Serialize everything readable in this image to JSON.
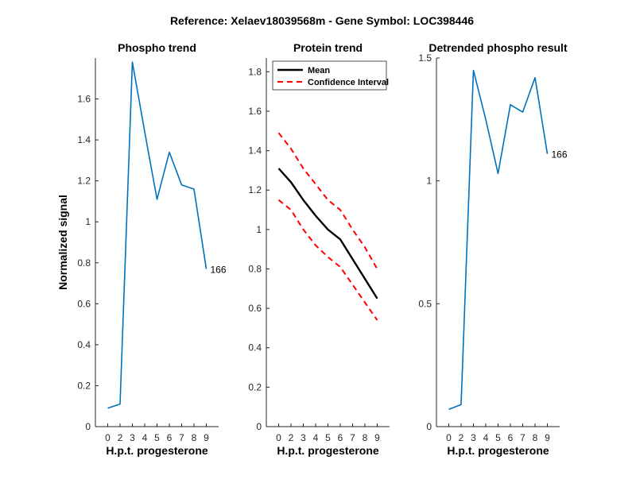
{
  "figure_title": "Reference:  Xelaev18039568m - Gene Symbol:  LOC398446",
  "colors": {
    "series_blue": "#0072BD",
    "mean": "#000000",
    "confidence": "#FF0000",
    "axis": "#262626"
  },
  "chart_data": [
    {
      "type": "line",
      "title": "Phospho trend",
      "xlabel": "H.p.t. progesterone",
      "ylabel": "Normalized signal",
      "x_ticks": [
        "0",
        "2",
        "3",
        "4",
        "5",
        "6",
        "7",
        "8",
        "9"
      ],
      "xlim": [
        0,
        10
      ],
      "ylim": [
        0,
        1.8
      ],
      "y_ticks": [
        "0",
        "0.2",
        "0.4",
        "0.6",
        "0.8",
        "1",
        "1.2",
        "1.4",
        "1.6"
      ],
      "series": [
        {
          "x": [
            1,
            2,
            3,
            4,
            5,
            6,
            7,
            8,
            9
          ],
          "values": [
            0.09,
            0.11,
            1.78,
            1.44,
            1.11,
            1.34,
            1.18,
            1.16,
            0.77
          ]
        }
      ],
      "annotations": [
        {
          "text": "166",
          "x": 9,
          "y": 0.77
        }
      ]
    },
    {
      "type": "line",
      "title": "Protein trend",
      "xlabel": "H.p.t. progesterone",
      "ylabel": "",
      "x_ticks": [
        "0",
        "2",
        "3",
        "4",
        "5",
        "6",
        "7",
        "8",
        "9"
      ],
      "xlim": [
        0,
        10
      ],
      "ylim": [
        0,
        1.87
      ],
      "y_ticks": [
        "0",
        "0.2",
        "0.4",
        "0.6",
        "0.8",
        "1",
        "1.2",
        "1.4",
        "1.6",
        "1.8"
      ],
      "legend": {
        "position": "top-left",
        "entries": [
          "Mean",
          "Confidence Interval"
        ]
      },
      "series": [
        {
          "name": "Mean",
          "style": "solid",
          "x": [
            1,
            2,
            3,
            4,
            5,
            6,
            7,
            8,
            9
          ],
          "values": [
            1.31,
            1.24,
            1.15,
            1.07,
            1.0,
            0.95,
            0.85,
            0.75,
            0.65
          ]
        },
        {
          "name": "Confidence Interval",
          "style": "dashed",
          "x": [
            1,
            2,
            3,
            4,
            5,
            6,
            7,
            8,
            9
          ],
          "values": [
            1.49,
            1.41,
            1.31,
            1.23,
            1.15,
            1.1,
            1.0,
            0.91,
            0.8
          ]
        },
        {
          "name": "Confidence Interval (lower)",
          "style": "dashed",
          "x": [
            1,
            2,
            3,
            4,
            5,
            6,
            7,
            8,
            9
          ],
          "values": [
            1.15,
            1.1,
            1.0,
            0.92,
            0.86,
            0.81,
            0.72,
            0.63,
            0.54
          ]
        }
      ]
    },
    {
      "type": "line",
      "title": "Detrended phospho result",
      "xlabel": "H.p.t. progesterone",
      "ylabel": "",
      "x_ticks": [
        "0",
        "2",
        "3",
        "4",
        "5",
        "6",
        "7",
        "8",
        "9"
      ],
      "xlim": [
        0,
        10
      ],
      "ylim": [
        0,
        1.5
      ],
      "y_ticks": [
        "0",
        "0.5",
        "1",
        "1.5"
      ],
      "series": [
        {
          "x": [
            1,
            2,
            3,
            4,
            5,
            6,
            7,
            8,
            9
          ],
          "values": [
            0.07,
            0.09,
            1.45,
            1.25,
            1.03,
            1.31,
            1.28,
            1.42,
            1.11
          ]
        }
      ],
      "annotations": [
        {
          "text": "166",
          "x": 9,
          "y": 1.11
        }
      ]
    }
  ]
}
